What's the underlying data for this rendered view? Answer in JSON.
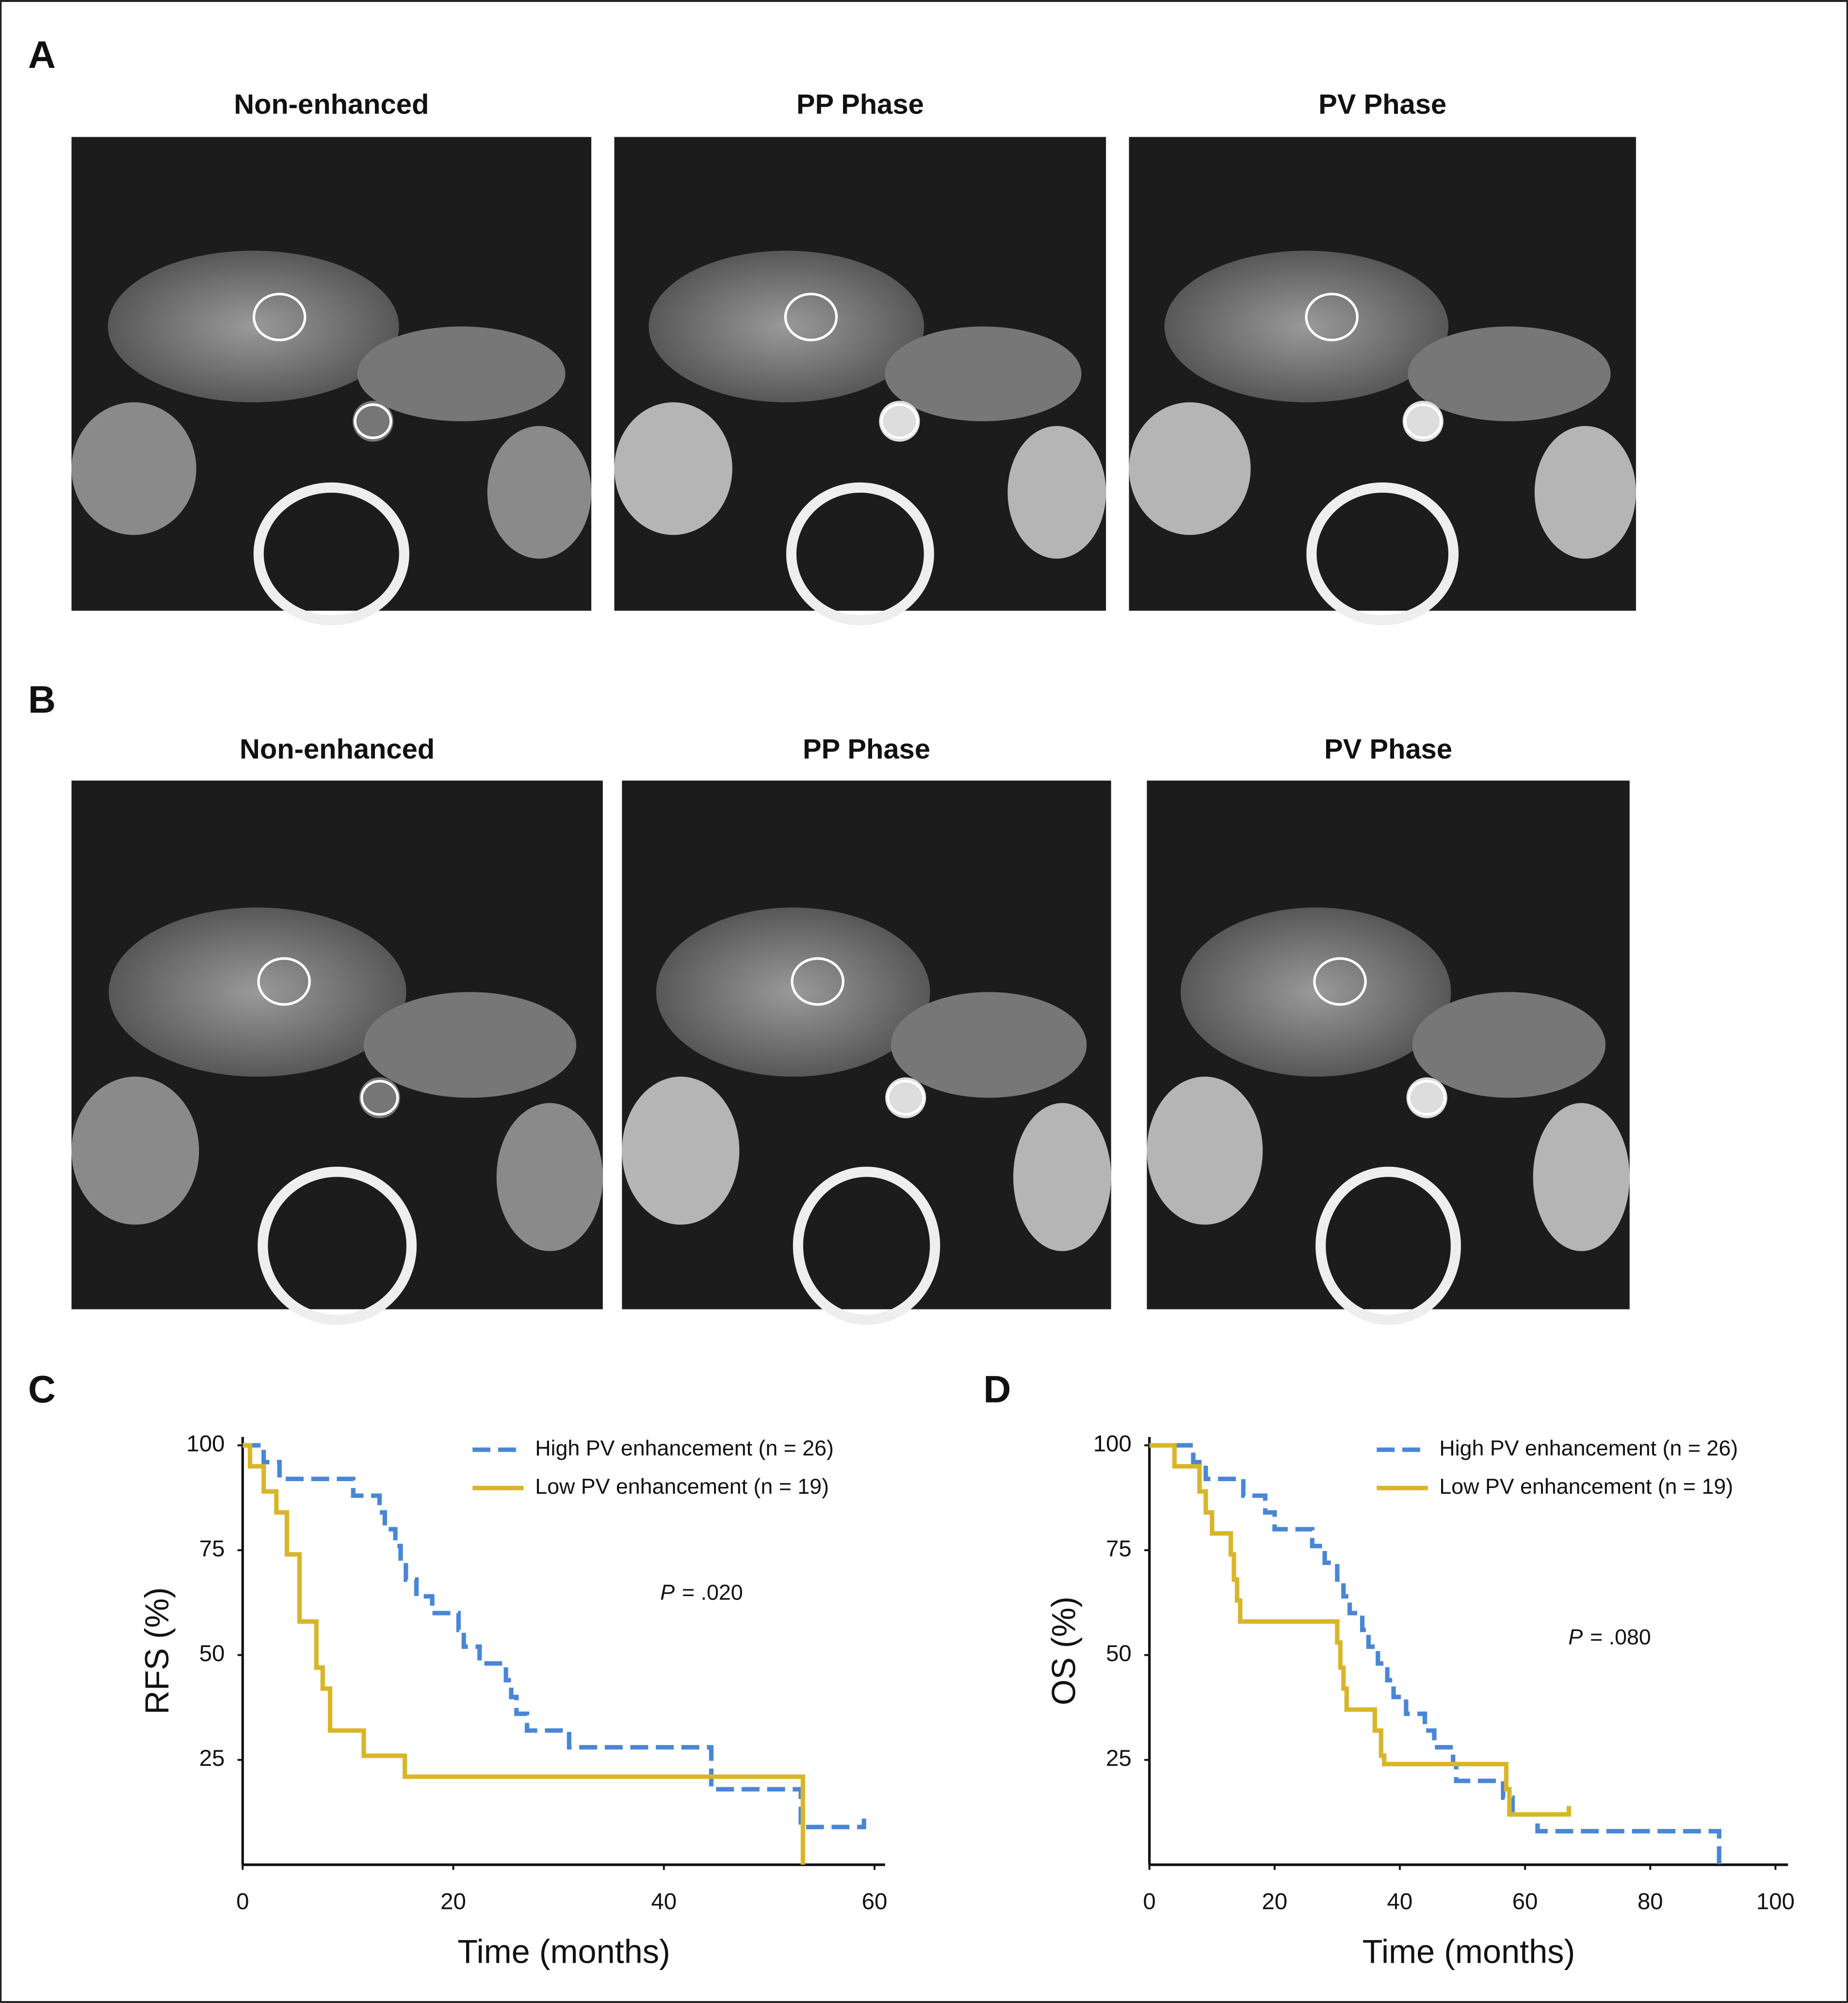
{
  "panels": [
    {
      "label": "A",
      "titles": [
        "Non-enhanced",
        "PP Phase",
        "PV Phase"
      ]
    },
    {
      "label": "B",
      "titles": [
        "Non-enhanced",
        "PP Phase",
        "PV Phase"
      ]
    }
  ],
  "chart_data": [
    {
      "type": "line",
      "step": true,
      "panel_label": "C",
      "x_label": "Time (months)",
      "y_label": "RFS (%)",
      "annotation": {
        "symbol": "P",
        "text": "= .020"
      },
      "xlim": [
        0,
        61
      ],
      "xticks": [
        0,
        20,
        40,
        60
      ],
      "ylim": [
        0,
        102
      ],
      "yticks": [
        25,
        50,
        75,
        100
      ],
      "legend": "top-right",
      "series": [
        {
          "name": "High PV enhancement (n = 26)",
          "color": "#4a86d6",
          "dashed": true,
          "x": [
            0,
            2,
            3.5,
            10.5,
            13,
            13.5,
            14.5,
            15,
            15.5,
            16.5,
            18,
            20.5,
            21,
            22.5,
            25,
            25.5,
            26,
            27,
            31,
            44.5,
            53,
            59
          ],
          "values": [
            100,
            96,
            92,
            88,
            84,
            80,
            76,
            72,
            68,
            64,
            60,
            56,
            52,
            48,
            44,
            40,
            36,
            32,
            28,
            18,
            9,
            11
          ]
        },
        {
          "name": "Low PV enhancement (n = 19)",
          "color": "#d9b52a",
          "dashed": false,
          "x": [
            0,
            0.7,
            2,
            3.2,
            4.2,
            5.4,
            7,
            7.6,
            8.3,
            11.5,
            15.4,
            53.2
          ],
          "values": [
            100,
            95,
            89,
            84,
            74,
            58,
            47,
            42,
            32,
            26,
            21,
            0
          ]
        }
      ]
    },
    {
      "type": "line",
      "step": true,
      "panel_label": "D",
      "x_label": "Time (months)",
      "y_label": "OS (%)",
      "annotation": {
        "symbol": "P",
        "text": "= .080"
      },
      "xlim": [
        0,
        102
      ],
      "xticks": [
        0,
        20,
        40,
        60,
        80,
        100
      ],
      "ylim": [
        0,
        102
      ],
      "yticks": [
        25,
        50,
        75,
        100
      ],
      "legend": "top-right",
      "series": [
        {
          "name": "High PV enhancement (n = 26)",
          "color": "#4a86d6",
          "dashed": true,
          "x": [
            0,
            7,
            9,
            15,
            18.5,
            20,
            26,
            28,
            30,
            31,
            32,
            34,
            35,
            36.5,
            38,
            39,
            41,
            44,
            45.5,
            48.5,
            49,
            56.5,
            58,
            62,
            91
          ],
          "values": [
            100,
            96,
            92,
            88,
            84,
            80,
            76,
            72,
            68,
            64,
            60,
            56,
            52,
            48,
            44,
            40,
            36,
            32,
            28,
            24,
            20,
            16,
            12,
            8,
            0
          ]
        },
        {
          "name": "Low PV enhancement (n = 19)",
          "color": "#d9b52a",
          "dashed": false,
          "x": [
            0,
            4,
            8,
            9,
            10,
            13,
            13.5,
            14,
            14.5,
            30,
            30.5,
            31,
            31.5,
            36,
            37,
            37.5,
            57,
            57.5,
            67
          ],
          "values": [
            100,
            95,
            89,
            84,
            79,
            74,
            68,
            63,
            58,
            53,
            47,
            42,
            37,
            32,
            26,
            24,
            18,
            12,
            14
          ]
        }
      ]
    }
  ]
}
